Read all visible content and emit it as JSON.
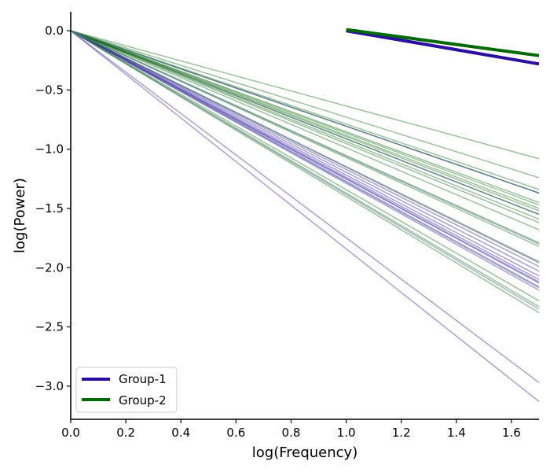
{
  "chart_data": {
    "type": "line",
    "xlabel": "log(Frequency)",
    "ylabel": "log(Power)",
    "xlim": [
      0,
      1.7
    ],
    "ylim": [
      -3.28,
      0.16
    ],
    "xticks": [
      "0.0",
      "0.2",
      "0.4",
      "0.6",
      "0.8",
      "1.0",
      "1.2",
      "1.4",
      "1.6"
    ],
    "yticks": [
      "0.0",
      "−0.5",
      "−1.0",
      "−1.5",
      "−2.0",
      "−2.5",
      "−3.0"
    ],
    "spines": "left-bottom",
    "grid": false,
    "legend": {
      "position": "lower-left",
      "entries": [
        {
          "name": "Group-1",
          "color": "#2a0ea1"
        },
        {
          "name": "Group-2",
          "color": "#006a00"
        }
      ]
    },
    "individual_lines": {
      "x_range": [
        0,
        1.7
      ],
      "alpha": 0.4,
      "line_width": 1.5,
      "groups": [
        {
          "name": "Group-1",
          "color": "#2a0ea1",
          "end_values": [
            -3.13,
            -2.97,
            -2.19,
            -2.13,
            -2.1,
            -2.07,
            -2.03,
            -1.99,
            -1.95,
            -1.55,
            -1.37,
            -2.17,
            -2.12
          ]
        },
        {
          "name": "Group-2",
          "color": "#006a00",
          "end_values": [
            -1.08,
            -1.24,
            -1.34,
            -1.37,
            -1.45,
            -1.47,
            -1.5,
            -1.52,
            -1.55,
            -1.59,
            -1.62,
            -1.68,
            -1.79,
            -1.82,
            -1.96,
            -2.28,
            -2.33,
            -2.38
          ]
        }
      ],
      "overlap_lines": {
        "color": "#5a7a9a",
        "end_values": [
          -1.37,
          -1.8,
          -2.16,
          -2.35
        ]
      }
    },
    "series": [
      {
        "name": "Group-1",
        "color": "#2a0ea1",
        "x": [
          1.0,
          1.7
        ],
        "y": [
          0.0,
          -0.28
        ],
        "line_width": 4
      },
      {
        "name": "Group-2",
        "color": "#006a00",
        "x": [
          1.0,
          1.7
        ],
        "y": [
          0.01,
          -0.21
        ],
        "line_width": 4
      }
    ]
  }
}
